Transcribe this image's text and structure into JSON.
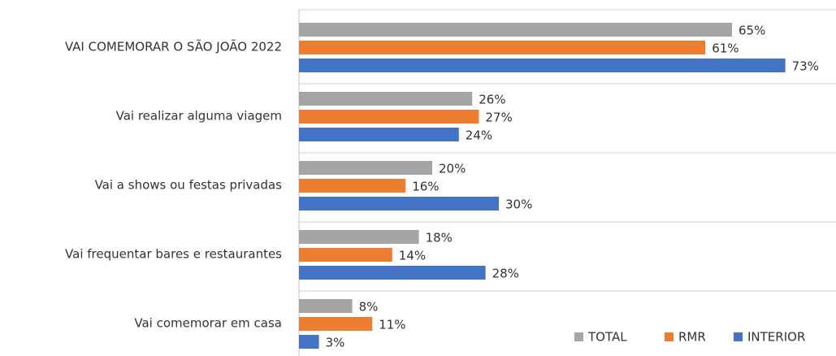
{
  "chart_data": {
    "type": "bar",
    "orientation": "horizontal",
    "categories": [
      "VAI COMEMORAR O SÃO JOÃO 2022",
      "Vai realizar alguma viagem",
      "Vai a shows ou festas privadas",
      "Vai frequentar bares e restaurantes",
      "Vai comemorar em casa"
    ],
    "series": [
      {
        "name": "TOTAL",
        "color": "#a5a5a5",
        "values": [
          65,
          26,
          20,
          18,
          8
        ],
        "value_labels": [
          "65%",
          "26%",
          "20%",
          "18%",
          "8%"
        ]
      },
      {
        "name": "RMR",
        "color": "#ed7d31",
        "values": [
          61,
          27,
          16,
          14,
          11
        ],
        "value_labels": [
          "61%",
          "27%",
          "16%",
          "14%",
          "11%"
        ]
      },
      {
        "name": "INTERIOR",
        "color": "#4472c4",
        "values": [
          73,
          24,
          30,
          28,
          3
        ],
        "value_labels": [
          "73%",
          "24%",
          "30%",
          "28%",
          "3%"
        ]
      }
    ],
    "xlim": [
      0,
      80
    ],
    "legend": "lower right"
  }
}
